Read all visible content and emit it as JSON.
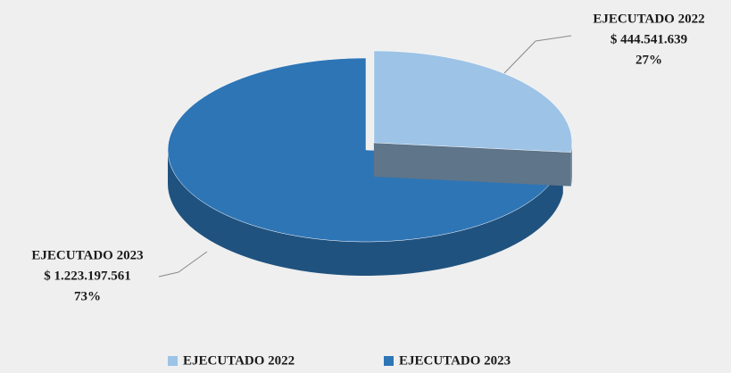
{
  "chart_data": {
    "type": "pie3d",
    "categories": [
      "EJECUTADO 2022",
      "EJECUTADO 2023"
    ],
    "values": [
      444541639,
      1223197561
    ],
    "value_labels": [
      "$ 444.541.639",
      "$ 1.223.197.561"
    ],
    "percent_labels": [
      "27%",
      "73%"
    ],
    "colors": [
      "#9dc3e6",
      "#2e75b6"
    ],
    "legend": "bottom"
  }
}
